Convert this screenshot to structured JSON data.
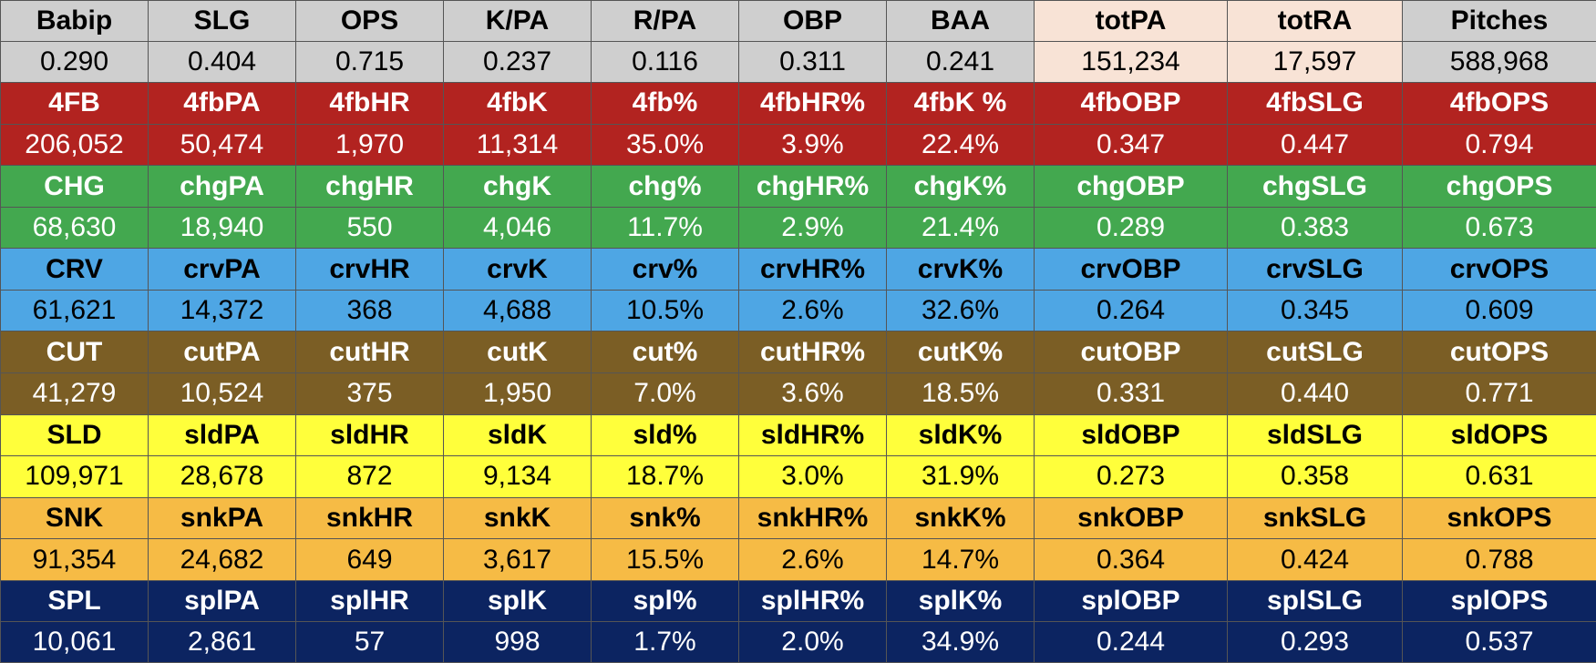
{
  "summary": {
    "headers": [
      "Babip",
      "SLG",
      "OPS",
      "K/PA",
      "R/PA",
      "OBP",
      "BAA",
      "totPA",
      "totRA",
      "Pitches"
    ],
    "values": [
      "0.290",
      "0.404",
      "0.715",
      "0.237",
      "0.116",
      "0.311",
      "0.241",
      "151,234",
      "17,597",
      "588,968"
    ]
  },
  "pitch_groups": [
    {
      "headers": [
        "4FB",
        "4fbPA",
        "4fbHR",
        "4fbK",
        "4fb%",
        "4fbHR%",
        "4fbK %",
        "4fbOBP",
        "4fbSLG",
        "4fbOPS"
      ],
      "values": [
        "206,052",
        "50,474",
        "1,970",
        "11,314",
        "35.0%",
        "3.9%",
        "22.4%",
        "0.347",
        "0.447",
        "0.794"
      ]
    },
    {
      "headers": [
        "CHG",
        "chgPA",
        "chgHR",
        "chgK",
        "chg%",
        "chgHR%",
        "chgK%",
        "chgOBP",
        "chgSLG",
        "chgOPS"
      ],
      "values": [
        "68,630",
        "18,940",
        "550",
        "4,046",
        "11.7%",
        "2.9%",
        "21.4%",
        "0.289",
        "0.383",
        "0.673"
      ]
    },
    {
      "headers": [
        "CRV",
        "crvPA",
        "crvHR",
        "crvK",
        "crv%",
        "crvHR%",
        "crvK%",
        "crvOBP",
        "crvSLG",
        "crvOPS"
      ],
      "values": [
        "61,621",
        "14,372",
        "368",
        "4,688",
        "10.5%",
        "2.6%",
        "32.6%",
        "0.264",
        "0.345",
        "0.609"
      ]
    },
    {
      "headers": [
        "CUT",
        "cutPA",
        "cutHR",
        "cutK",
        "cut%",
        "cutHR%",
        "cutK%",
        "cutOBP",
        "cutSLG",
        "cutOPS"
      ],
      "values": [
        "41,279",
        "10,524",
        "375",
        "1,950",
        "7.0%",
        "3.6%",
        "18.5%",
        "0.331",
        "0.440",
        "0.771"
      ]
    },
    {
      "headers": [
        "SLD",
        "sldPA",
        "sldHR",
        "sldK",
        "sld%",
        "sldHR%",
        "sldK%",
        "sldOBP",
        "sldSLG",
        "sldOPS"
      ],
      "values": [
        "109,971",
        "28,678",
        "872",
        "9,134",
        "18.7%",
        "3.0%",
        "31.9%",
        "0.273",
        "0.358",
        "0.631"
      ]
    },
    {
      "headers": [
        "SNK",
        "snkPA",
        "snkHR",
        "snkK",
        "snk%",
        "snkHR%",
        "snkK%",
        "snkOBP",
        "snkSLG",
        "snkOPS"
      ],
      "values": [
        "91,354",
        "24,682",
        "649",
        "3,617",
        "15.5%",
        "2.6%",
        "14.7%",
        "0.364",
        "0.424",
        "0.788"
      ]
    },
    {
      "headers": [
        "SPL",
        "splPA",
        "splHR",
        "splK",
        "spl%",
        "splHR%",
        "splK%",
        "splOBP",
        "splSLG",
        "splOPS"
      ],
      "values": [
        "10,061",
        "2,861",
        "57",
        "998",
        "1.7%",
        "2.0%",
        "34.9%",
        "0.244",
        "0.293",
        "0.537"
      ]
    }
  ],
  "colors": {
    "summary_bg": "#cfcfcf",
    "summary_highlight_bg": "#f8e3d6",
    "summary_text": "#000000",
    "groups": [
      {
        "bg": "#b22320",
        "header_text": "#ffffff",
        "value_text": "#ffffff"
      },
      {
        "bg": "#43a84f",
        "header_text": "#ffffff",
        "value_text": "#ffffff"
      },
      {
        "bg": "#4ea6e4",
        "header_text": "#000000",
        "value_text": "#000000"
      },
      {
        "bg": "#7b5e25",
        "header_text": "#ffffff",
        "value_text": "#ffffff"
      },
      {
        "bg": "#ffff3b",
        "header_text": "#000000",
        "value_text": "#000000"
      },
      {
        "bg": "#f6bb45",
        "header_text": "#000000",
        "value_text": "#000000"
      },
      {
        "bg": "#0c2461",
        "header_text": "#ffffff",
        "value_text": "#ffffff"
      }
    ]
  }
}
